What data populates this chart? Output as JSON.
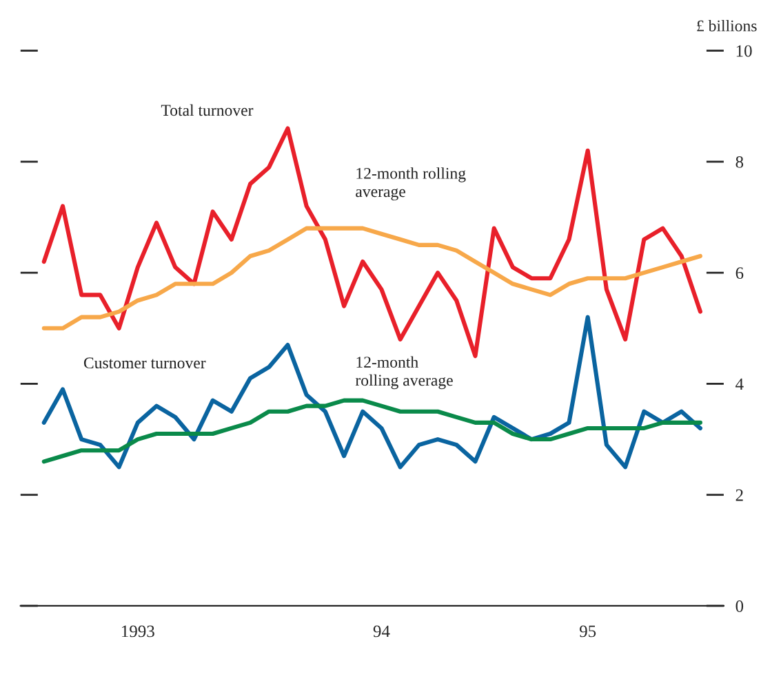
{
  "chart_data": {
    "type": "line",
    "ylabel": "£ billions",
    "categories": [
      null,
      null,
      null,
      null,
      null,
      "1993",
      null,
      null,
      null,
      null,
      null,
      null,
      null,
      null,
      null,
      null,
      null,
      null,
      "94",
      null,
      null,
      null,
      null,
      null,
      null,
      null,
      null,
      null,
      null,
      "95",
      null,
      null,
      null,
      null,
      null,
      null
    ],
    "series": [
      {
        "name": "Total turnover",
        "color": "#e8202a",
        "values": [
          6.2,
          7.2,
          5.6,
          5.6,
          5.0,
          6.1,
          6.9,
          6.1,
          5.8,
          7.1,
          6.6,
          7.6,
          7.9,
          8.6,
          7.2,
          6.6,
          5.4,
          6.2,
          5.7,
          4.8,
          5.4,
          6.0,
          5.5,
          4.5,
          6.8,
          6.1,
          5.9,
          5.9,
          6.6,
          8.2,
          5.7,
          4.8,
          6.6,
          6.8,
          6.3,
          5.3
        ]
      },
      {
        "name": "12-month rolling average",
        "color": "#f7a84a",
        "values": [
          5.0,
          5.0,
          5.2,
          5.2,
          5.3,
          5.5,
          5.6,
          5.8,
          5.8,
          5.8,
          6.0,
          6.3,
          6.4,
          6.6,
          6.8,
          6.8,
          6.8,
          6.8,
          6.7,
          6.6,
          6.5,
          6.5,
          6.4,
          6.2,
          6.0,
          5.8,
          5.7,
          5.6,
          5.8,
          5.9,
          5.9,
          5.9,
          6.0,
          6.1,
          6.2,
          6.3
        ]
      },
      {
        "name": "Customer turnover",
        "color": "#0a64a0",
        "values": [
          3.3,
          3.9,
          3.0,
          2.9,
          2.5,
          3.3,
          3.6,
          3.4,
          3.0,
          3.7,
          3.5,
          4.1,
          4.3,
          4.7,
          3.8,
          3.5,
          2.7,
          3.5,
          3.2,
          2.5,
          2.9,
          3.0,
          2.9,
          2.6,
          3.4,
          3.2,
          3.0,
          3.1,
          3.3,
          5.2,
          2.9,
          2.5,
          3.5,
          3.3,
          3.5,
          3.2
        ]
      },
      {
        "name": "12-month rolling average",
        "color": "#0a8a4a",
        "values": [
          2.6,
          2.7,
          2.8,
          2.8,
          2.8,
          3.0,
          3.1,
          3.1,
          3.1,
          3.1,
          3.2,
          3.3,
          3.5,
          3.5,
          3.6,
          3.6,
          3.7,
          3.7,
          3.6,
          3.5,
          3.5,
          3.5,
          3.4,
          3.3,
          3.3,
          3.1,
          3.0,
          3.0,
          3.1,
          3.2,
          3.2,
          3.2,
          3.2,
          3.3,
          3.3,
          3.3
        ]
      }
    ],
    "ylim": [
      0,
      10
    ],
    "yticks": [
      0,
      2,
      4,
      6,
      8,
      10
    ],
    "grid": false,
    "legend": false
  }
}
